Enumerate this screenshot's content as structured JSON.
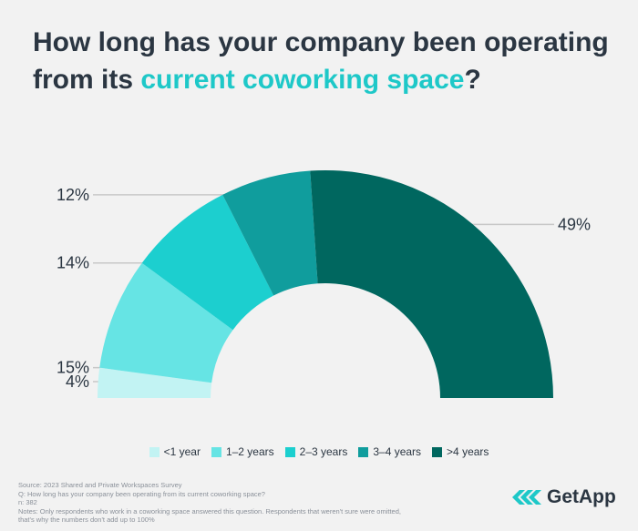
{
  "title": {
    "part1": "How long has your company been operating from its ",
    "highlight": "current coworking space",
    "part2": "?"
  },
  "chart_data": {
    "type": "pie",
    "variant": "semicircle-donut",
    "categories": [
      "<1 year",
      "1–2 years",
      "2–3 years",
      "3–4 years",
      ">4 years"
    ],
    "values": [
      4,
      15,
      14,
      12,
      49
    ],
    "labels": [
      "4%",
      "15%",
      "14%",
      "12%",
      "49%"
    ],
    "colors": [
      "#c2f3f3",
      "#66e4e4",
      "#1ccfcf",
      "#109d9d",
      "#00675f"
    ],
    "legend_position": "bottom"
  },
  "notes": {
    "source": "Source: 2023 Shared and Private Workspaces Survey",
    "question": "Q: How long has your company been operating from its current coworking space?",
    "n": "n: 382",
    "line1": "Notes: Only respondents who work in a coworking space answered this question. Respondents that weren't sure were omitted,",
    "line2": "that's why the numbers don't add up to 100%"
  },
  "logo": {
    "text": "GetApp",
    "icon": "getapp-chevrons-icon",
    "color": "#1ec8c8"
  }
}
